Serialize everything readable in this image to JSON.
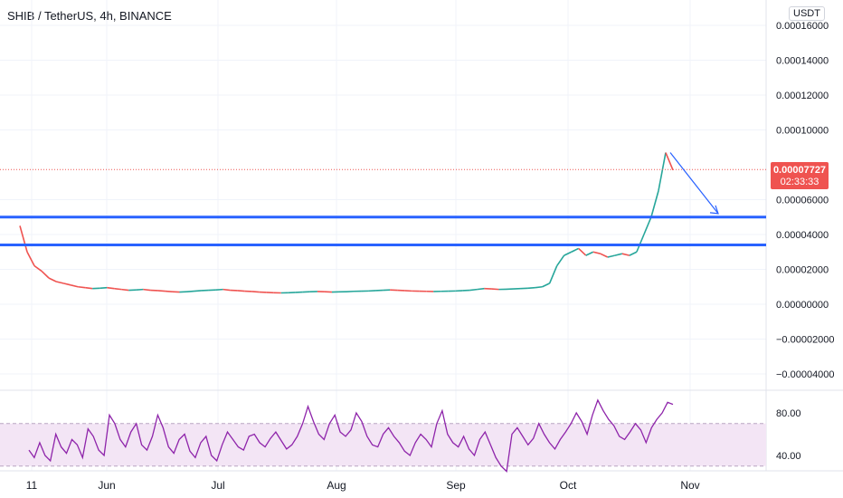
{
  "header": {
    "title": "SHIB / TetherUS, 4h, BINANCE",
    "currency_badge": "USDT"
  },
  "price_tag": {
    "price": "0.00007727",
    "countdown": "02:33:33"
  },
  "colors": {
    "accent_line": "#2962ff",
    "rsi_line": "#8e24aa",
    "rsi_band": "#f3e5f5",
    "price_tag": "#ef5350",
    "up": "#26a69a",
    "down": "#ef5350"
  },
  "chart_data": [
    {
      "type": "line",
      "panel": "price",
      "x_tick_labels": [
        "11",
        "Jun",
        "Jul",
        "Aug",
        "Sep",
        "Oct",
        "Nov"
      ],
      "y_tick_labels": [
        "0.00016000",
        "0.00014000",
        "0.00012000",
        "0.00010000",
        "0.00006000",
        "0.00004000",
        "0.00002000",
        "0.00000000",
        "−0.00002000",
        "−0.00004000"
      ],
      "ylim": [
        -5e-05,
        0.00016
      ],
      "series": [
        {
          "values": [
            4.5e-05,
            3e-05,
            2.2e-05,
            1.9e-05,
            1.5e-05,
            1.3e-05,
            1.2e-05,
            1.1e-05,
            1e-05,
            9.5e-06,
            9e-06,
            9.2e-06,
            9.5e-06,
            9e-06,
            8.5e-06,
            8e-06,
            8.2e-06,
            8.5e-06,
            8e-06,
            7.8e-06,
            7.5e-06,
            7.2e-06,
            7e-06,
            7.2e-06,
            7.5e-06,
            7.8e-06,
            8e-06,
            8.2e-06,
            8.5e-06,
            8e-06,
            7.8e-06,
            7.5e-06,
            7.3e-06,
            7e-06,
            6.8e-06,
            6.6e-06,
            6.5e-06,
            6.6e-06,
            6.8e-06,
            7e-06,
            7.2e-06,
            7.3e-06,
            7.2e-06,
            7e-06,
            7.1e-06,
            7.2e-06,
            7.4e-06,
            7.5e-06,
            7.6e-06,
            7.8e-06,
            8e-06,
            8.2e-06,
            8e-06,
            7.8e-06,
            7.6e-06,
            7.5e-06,
            7.4e-06,
            7.3e-06,
            7.4e-06,
            7.5e-06,
            7.6e-06,
            7.8e-06,
            8e-06,
            8.5e-06,
            9e-06,
            8.8e-06,
            8.5e-06,
            8.6e-06,
            8.8e-06,
            9e-06,
            9.2e-06,
            9.5e-06,
            1e-05,
            1.2e-05,
            2.2e-05,
            2.8e-05,
            3e-05,
            3.2e-05,
            2.8e-05,
            3e-05,
            2.9e-05,
            2.7e-05,
            2.8e-05,
            2.9e-05,
            2.8e-05,
            3e-05,
            4e-05,
            5e-05,
            6.5e-05,
            8.7e-05,
            7.7e-05
          ]
        }
      ],
      "annotations": [
        {
          "type": "horizontal_line",
          "value": 5e-05
        },
        {
          "type": "horizontal_line",
          "value": 3.4e-05
        },
        {
          "type": "arrow",
          "from_value": 8.7e-05,
          "to_value": 5.2e-05
        }
      ]
    },
    {
      "type": "line",
      "panel": "indicator",
      "y_tick_labels": [
        "80.00",
        "40.00"
      ],
      "ylim": [
        20,
        100
      ],
      "band": [
        30,
        70
      ],
      "series": [
        {
          "values": [
            45,
            38,
            52,
            40,
            35,
            60,
            48,
            42,
            55,
            50,
            38,
            65,
            58,
            45,
            40,
            78,
            70,
            55,
            48,
            62,
            70,
            50,
            45,
            58,
            78,
            66,
            48,
            42,
            55,
            60,
            44,
            38,
            52,
            58,
            40,
            35,
            50,
            62,
            55,
            48,
            45,
            58,
            60,
            52,
            48,
            56,
            62,
            54,
            46,
            50,
            58,
            70,
            86,
            72,
            60,
            55,
            70,
            78,
            62,
            58,
            64,
            80,
            72,
            58,
            50,
            48,
            60,
            66,
            58,
            52,
            44,
            40,
            52,
            60,
            55,
            48,
            70,
            82,
            60,
            52,
            48,
            58,
            46,
            40,
            55,
            62,
            50,
            38,
            30,
            25,
            60,
            66,
            58,
            50,
            56,
            70,
            60,
            52,
            46,
            55,
            62,
            70,
            80,
            72,
            60,
            78,
            92,
            82,
            74,
            68,
            58,
            55,
            62,
            70,
            64,
            52,
            66,
            74,
            80,
            90,
            88
          ]
        }
      ]
    }
  ]
}
